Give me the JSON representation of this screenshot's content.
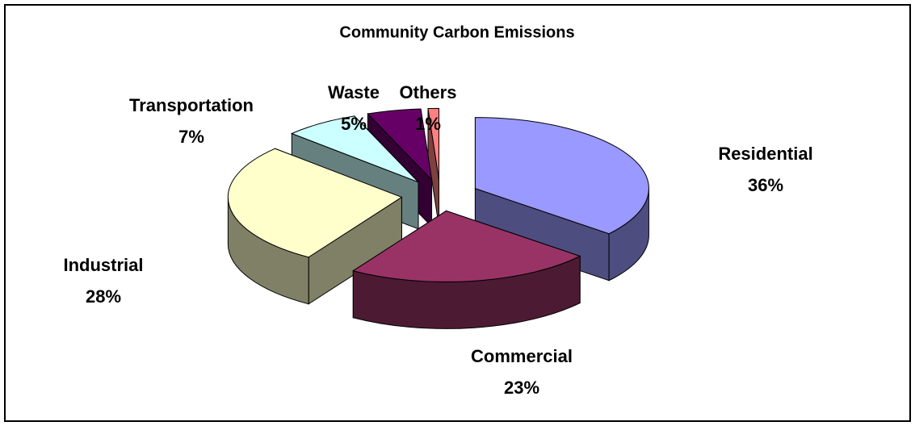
{
  "chart_data": {
    "type": "pie3d",
    "title": "Community Carbon Emissions",
    "categories": [
      "Residential",
      "Commercial",
      "Industrial",
      "Transportation",
      "Waste",
      "Others"
    ],
    "values": [
      36,
      23,
      28,
      7,
      5,
      1
    ],
    "value_labels": [
      "36%",
      "23%",
      "28%",
      "7%",
      "5%",
      "1%"
    ],
    "colors": [
      "#9999ff",
      "#993366",
      "#ffffcc",
      "#ccffff",
      "#660066",
      "#ff8080"
    ],
    "exploded": true
  }
}
